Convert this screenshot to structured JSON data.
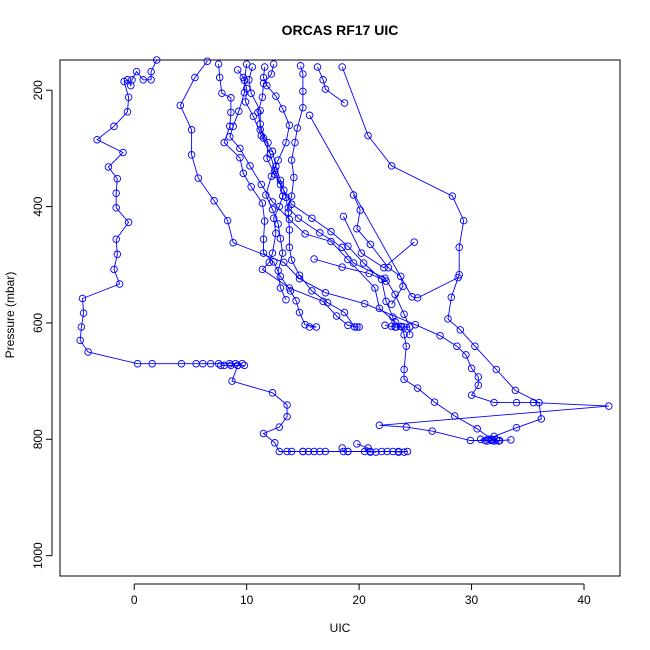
{
  "chart_data": {
    "type": "line",
    "title": "ORCAS RF17 UIC",
    "xlabel": "UIC",
    "ylabel": "Pressure (mbar)",
    "xlim": [
      -6.6,
      43.2
    ],
    "ylim": [
      1035,
      148
    ],
    "y_reversed": true,
    "x_ticks": [
      0,
      10,
      20,
      30,
      40
    ],
    "y_ticks": [
      200,
      400,
      600,
      800,
      1000
    ],
    "grid": false,
    "legend": "none",
    "series_color": "#0000ff",
    "marker": "open-circle",
    "series": [
      {
        "points": [
          [
            2.0,
            148
          ],
          [
            1.5,
            168
          ],
          [
            1.5,
            182
          ],
          [
            0.8,
            182
          ],
          [
            0.2,
            168
          ],
          [
            -0.2,
            182
          ],
          [
            -0.3,
            192
          ],
          [
            -0.6,
            182
          ],
          [
            -0.9,
            185
          ],
          [
            -0.5,
            212
          ],
          [
            -0.6,
            237
          ],
          [
            -1.8,
            262
          ],
          [
            -3.3,
            285
          ],
          [
            -1.0,
            307
          ],
          [
            -2.3,
            332
          ],
          [
            -1.5,
            352
          ],
          [
            -1.6,
            377
          ],
          [
            -1.6,
            402
          ],
          [
            -0.5,
            427
          ],
          [
            -1.6,
            456
          ],
          [
            -1.5,
            482
          ],
          [
            -1.8,
            508
          ],
          [
            -1.3,
            533
          ],
          [
            -4.6,
            558
          ],
          [
            -4.5,
            583
          ],
          [
            -4.7,
            607
          ],
          [
            -4.8,
            630
          ],
          [
            -4.1,
            650
          ],
          [
            0.3,
            670
          ],
          [
            1.6,
            670
          ],
          [
            4.2,
            670
          ],
          [
            5.5,
            670
          ],
          [
            6.1,
            670
          ],
          [
            6.8,
            670
          ],
          [
            7.5,
            670
          ],
          [
            8.5,
            670
          ],
          [
            9.0,
            670
          ],
          [
            9.6,
            670
          ],
          [
            9.2,
            673
          ],
          [
            8.7,
            700
          ],
          [
            12.3,
            720
          ],
          [
            13.6,
            741
          ],
          [
            13.6,
            761
          ],
          [
            12.9,
            779
          ],
          [
            11.5,
            790
          ],
          [
            12.5,
            806
          ],
          [
            12.9,
            821
          ],
          [
            13.6,
            821
          ],
          [
            15.0,
            821
          ],
          [
            17.0,
            821
          ],
          [
            19.0,
            821
          ],
          [
            21.0,
            821
          ],
          [
            22.0,
            821
          ],
          [
            23.5,
            821
          ],
          [
            24.3,
            821
          ]
        ]
      },
      {
        "points": [
          [
            7.5,
            155
          ],
          [
            7.6,
            178
          ],
          [
            7.8,
            205
          ],
          [
            8.6,
            213
          ],
          [
            8.6,
            238
          ],
          [
            8.5,
            262
          ],
          [
            8.0,
            290
          ],
          [
            9.4,
            316
          ],
          [
            9.7,
            343
          ],
          [
            10.4,
            366
          ],
          [
            11.4,
            394
          ],
          [
            11.6,
            425
          ],
          [
            11.5,
            456
          ],
          [
            11.5,
            480
          ],
          [
            12.4,
            495
          ],
          [
            13.0,
            520
          ],
          [
            13.9,
            545
          ],
          [
            14.4,
            562
          ],
          [
            14.7,
            582
          ],
          [
            15.2,
            603
          ],
          [
            16.2,
            607
          ],
          [
            15.6,
            607
          ]
        ]
      },
      {
        "points": [
          [
            12.4,
            155
          ],
          [
            12.2,
            172
          ],
          [
            11.5,
            188
          ],
          [
            11.4,
            212
          ],
          [
            11.0,
            238
          ],
          [
            11.2,
            258
          ],
          [
            11.5,
            282
          ],
          [
            12.3,
            305
          ],
          [
            12.6,
            331
          ],
          [
            13.0,
            355
          ],
          [
            13.5,
            384
          ],
          [
            13.7,
            410
          ],
          [
            13.8,
            440
          ],
          [
            13.8,
            470
          ],
          [
            14.0,
            492
          ],
          [
            14.7,
            518
          ],
          [
            15.8,
            545
          ],
          [
            17.2,
            565
          ],
          [
            18.7,
            582
          ],
          [
            19.6,
            607
          ],
          [
            20.0,
            607
          ]
        ]
      },
      {
        "points": [
          [
            10.5,
            160
          ],
          [
            10.2,
            182
          ],
          [
            10.4,
            205
          ],
          [
            11.2,
            235
          ],
          [
            11.2,
            268
          ],
          [
            11.9,
            290
          ],
          [
            11.8,
            317
          ],
          [
            12.5,
            345
          ],
          [
            13.3,
            372
          ],
          [
            14.0,
            396
          ],
          [
            15.8,
            420
          ],
          [
            17.5,
            443
          ],
          [
            19.0,
            468
          ],
          [
            20.4,
            497
          ],
          [
            22.0,
            525
          ],
          [
            22.4,
            563
          ],
          [
            23.0,
            590
          ],
          [
            23.2,
            607
          ],
          [
            24.0,
            607
          ],
          [
            24.5,
            607
          ]
        ]
      },
      {
        "points": [
          [
            14.8,
            158
          ],
          [
            15.0,
            172
          ],
          [
            15.0,
            202
          ],
          [
            15.0,
            230
          ],
          [
            14.5,
            265
          ],
          [
            14.3,
            290
          ],
          [
            14.0,
            320
          ],
          [
            14.2,
            350
          ],
          [
            14.0,
            382
          ],
          [
            13.7,
            402
          ],
          [
            14.6,
            420
          ],
          [
            16.5,
            445
          ],
          [
            18.5,
            470
          ],
          [
            19.5,
            497
          ],
          [
            22.3,
            523
          ],
          [
            23.2,
            551
          ],
          [
            24.0,
            585
          ],
          [
            24.5,
            607
          ],
          [
            24.5,
            620
          ]
        ]
      },
      {
        "points": [
          [
            6.5,
            150
          ],
          [
            5.4,
            178
          ],
          [
            4.1,
            226
          ],
          [
            5.1,
            268
          ],
          [
            5.1,
            311
          ],
          [
            5.7,
            351
          ],
          [
            7.1,
            390
          ],
          [
            8.3,
            424
          ],
          [
            8.8,
            462
          ],
          [
            13.3,
            496
          ],
          [
            14.7,
            524
          ],
          [
            17.0,
            548
          ],
          [
            20.5,
            567
          ],
          [
            25.0,
            603
          ],
          [
            27.2,
            622
          ],
          [
            28.7,
            640
          ],
          [
            29.5,
            655
          ],
          [
            30.0,
            678
          ],
          [
            30.6,
            693
          ],
          [
            30.6,
            707
          ],
          [
            30.0,
            724
          ],
          [
            32.0,
            737
          ],
          [
            34.0,
            737
          ],
          [
            35.5,
            737
          ],
          [
            42.2,
            743
          ],
          [
            21.8,
            776
          ],
          [
            24.2,
            779
          ],
          [
            26.5,
            786
          ],
          [
            29.9,
            802
          ],
          [
            31.2,
            802
          ],
          [
            32.5,
            802
          ],
          [
            33.5,
            801
          ]
        ]
      },
      {
        "points": [
          [
            18.5,
            160
          ],
          [
            20.8,
            278
          ],
          [
            22.9,
            330
          ],
          [
            28.3,
            382
          ],
          [
            29.3,
            424
          ],
          [
            28.9,
            470
          ],
          [
            28.9,
            517
          ],
          [
            28.2,
            556
          ],
          [
            27.9,
            593
          ],
          [
            29.0,
            612
          ],
          [
            30.3,
            640
          ],
          [
            32.2,
            680
          ],
          [
            33.9,
            716
          ],
          [
            36.0,
            737
          ],
          [
            36.2,
            765
          ],
          [
            34.0,
            780
          ],
          [
            32.0,
            795
          ],
          [
            30.8,
            800
          ],
          [
            31.5,
            800
          ]
        ]
      },
      {
        "points": [
          [
            16.3,
            160
          ],
          [
            16.8,
            182
          ],
          [
            17.0,
            198
          ],
          [
            18.7,
            222
          ]
        ]
      },
      {
        "points": [
          [
            15.6,
            243
          ],
          [
            24.7,
            555
          ],
          [
            25.2,
            557
          ],
          [
            28.8,
            522
          ]
        ]
      },
      {
        "points": [
          [
            10.0,
            155
          ],
          [
            9.8,
            183
          ],
          [
            9.8,
            204
          ],
          [
            9.3,
            236
          ],
          [
            8.8,
            262
          ],
          [
            8.5,
            280
          ],
          [
            9.4,
            300
          ],
          [
            10.3,
            330
          ],
          [
            11.3,
            362
          ],
          [
            12.3,
            392
          ],
          [
            13.8,
            422
          ],
          [
            15.2,
            447
          ],
          [
            17.5,
            460
          ],
          [
            19.0,
            491
          ],
          [
            21.4,
            540
          ],
          [
            21.8,
            575
          ],
          [
            23.2,
            598
          ],
          [
            23.8,
            607
          ],
          [
            24.0,
            620
          ],
          [
            24.2,
            640
          ],
          [
            24.0,
            680
          ],
          [
            24.0,
            697
          ],
          [
            25.2,
            712
          ],
          [
            26.7,
            736
          ],
          [
            28.5,
            760
          ],
          [
            30.5,
            782
          ],
          [
            31.8,
            800
          ],
          [
            32.2,
            801
          ]
        ]
      },
      {
        "points": [
          [
            9.2,
            165
          ],
          [
            9.7,
            178
          ],
          [
            10.0,
            197
          ],
          [
            9.9,
            220
          ],
          [
            10.6,
            245
          ],
          [
            11.3,
            278
          ],
          [
            12.1,
            310
          ],
          [
            12.5,
            338
          ],
          [
            13.0,
            362
          ],
          [
            13.2,
            382
          ],
          [
            12.9,
            400
          ],
          [
            12.4,
            420
          ],
          [
            12.6,
            446
          ],
          [
            12.3,
            480
          ],
          [
            12.0,
            496
          ],
          [
            11.4,
            508
          ],
          [
            13.8,
            540
          ],
          [
            16.8,
            563
          ],
          [
            18.0,
            588
          ],
          [
            19.0,
            604
          ],
          [
            19.8,
            607
          ]
        ]
      },
      {
        "points": [
          [
            11.6,
            160
          ],
          [
            11.5,
            178
          ],
          [
            11.8,
            192
          ],
          [
            12.6,
            210
          ],
          [
            13.2,
            232
          ],
          [
            13.8,
            260
          ],
          [
            13.5,
            290
          ],
          [
            12.8,
            320
          ],
          [
            12.2,
            348
          ],
          [
            11.7,
            380
          ],
          [
            12.3,
            405
          ],
          [
            12.8,
            430
          ],
          [
            13.0,
            455
          ],
          [
            13.2,
            480
          ],
          [
            12.8,
            510
          ],
          [
            13.0,
            540
          ],
          [
            13.5,
            560
          ]
        ]
      },
      {
        "points": [
          [
            19.5,
            380
          ],
          [
            20.1,
            406
          ],
          [
            19.8,
            438
          ],
          [
            21.0,
            465
          ],
          [
            22.6,
            505
          ],
          [
            23.7,
            520
          ],
          [
            23.9,
            537
          ],
          [
            22.9,
            568
          ]
        ]
      },
      {
        "points": [
          [
            18.6,
            417
          ],
          [
            20.2,
            480
          ],
          [
            22.2,
            505
          ],
          [
            24.9,
            461
          ]
        ]
      },
      {
        "points": [
          [
            16.0,
            490
          ],
          [
            18.5,
            504
          ],
          [
            20.9,
            515
          ],
          [
            22.4,
            528
          ]
        ]
      },
      {
        "points": [
          [
            7.7,
            673
          ],
          [
            8.0,
            673
          ],
          [
            8.6,
            673
          ],
          [
            9.2,
            673
          ],
          [
            9.8,
            673
          ]
        ]
      },
      {
        "points": [
          [
            14.0,
            821
          ],
          [
            15.0,
            821
          ],
          [
            15.5,
            821
          ],
          [
            16.0,
            821
          ],
          [
            16.5,
            821
          ]
        ]
      },
      {
        "points": [
          [
            19.8,
            808
          ],
          [
            20.8,
            815
          ],
          [
            20.5,
            821
          ],
          [
            21.0,
            822
          ],
          [
            21.5,
            822
          ]
        ]
      },
      {
        "points": [
          [
            18.5,
            815
          ],
          [
            18.6,
            821
          ],
          [
            19.0,
            821
          ],
          [
            22.5,
            821
          ],
          [
            23.0,
            821
          ],
          [
            23.5,
            822
          ],
          [
            24.0,
            822
          ]
        ]
      },
      {
        "points": [
          [
            31.4,
            803
          ],
          [
            31.8,
            802
          ],
          [
            32.0,
            803
          ],
          [
            32.4,
            803
          ]
        ]
      },
      {
        "points": [
          [
            22.3,
            604
          ],
          [
            22.9,
            606
          ],
          [
            23.3,
            607
          ],
          [
            23.7,
            606
          ]
        ]
      }
    ]
  }
}
